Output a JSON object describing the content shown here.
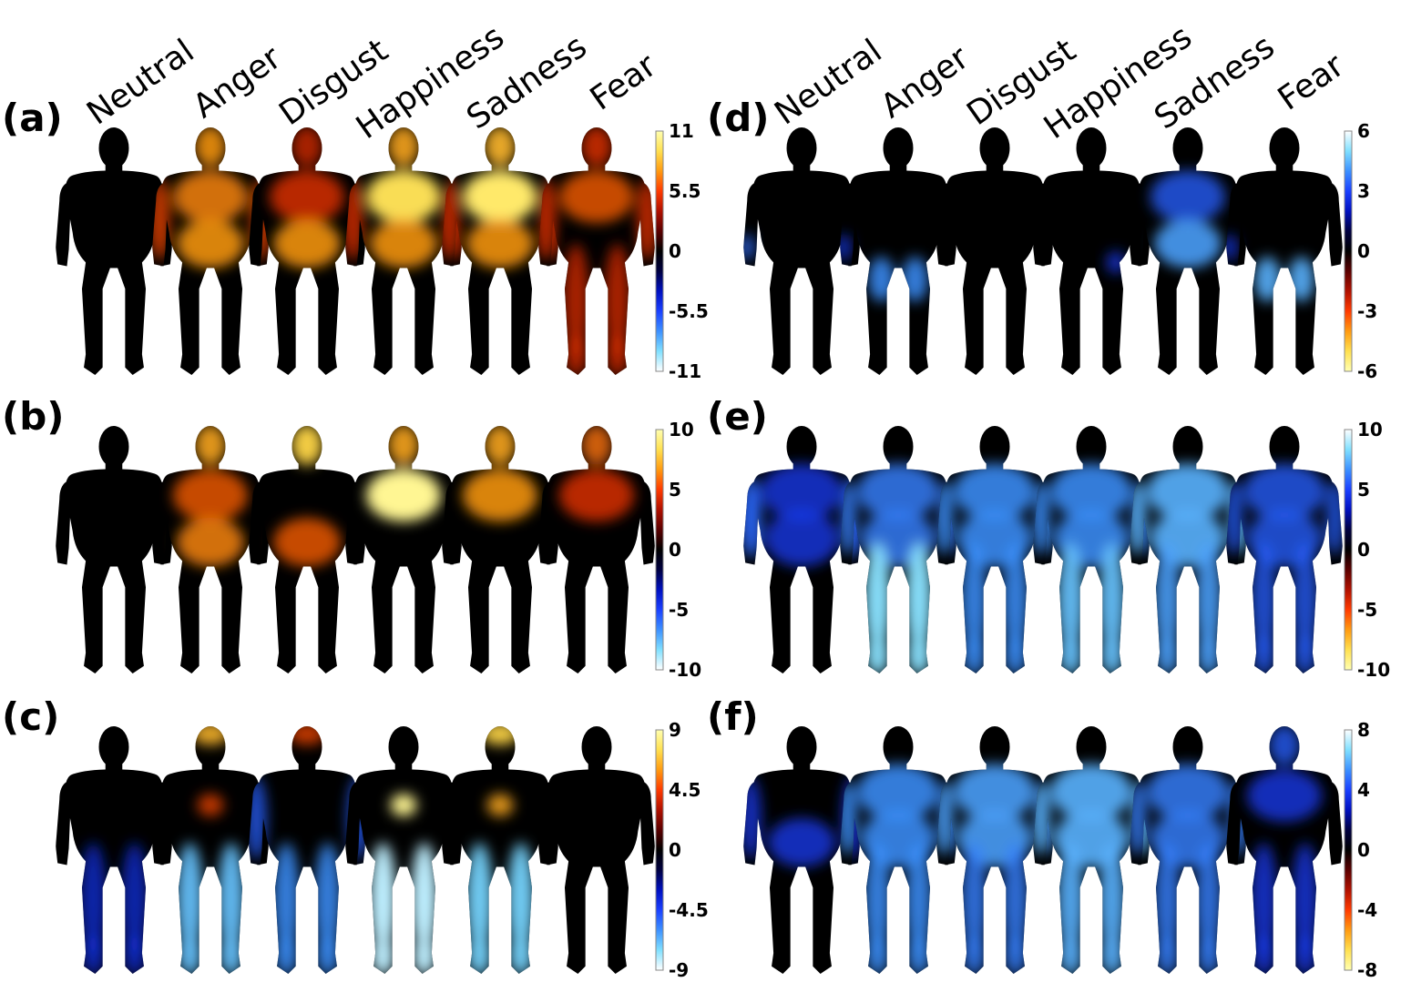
{
  "emotions": [
    "Neutral",
    "Anger",
    "Disgust",
    "Happiness",
    "Sadness",
    "Fear"
  ],
  "colors": {
    "positive": [
      "#000000",
      "#5a0000",
      "#b01000",
      "#ff3a00",
      "#ff9a10",
      "#ffe050",
      "#ffffb0"
    ],
    "negative": [
      "#000000",
      "#000040",
      "#0010c0",
      "#1a40ff",
      "#3c90ff",
      "#80e0ff",
      "#ffffff"
    ]
  },
  "panels": [
    {
      "id": "a",
      "label": "(a)",
      "ticks": [
        "11",
        "5.5",
        "0",
        "-5.5",
        "-11"
      ],
      "colorbar": "pos-top",
      "figures": [
        {
          "emotion": "Neutral",
          "blobs": []
        },
        {
          "emotion": "Anger",
          "blobs": [
            {
              "region": "head",
              "intensity": 0.6,
              "sign": "pos"
            },
            {
              "region": "chest",
              "intensity": 0.55,
              "sign": "pos"
            },
            {
              "region": "belly",
              "intensity": 0.6,
              "sign": "pos"
            },
            {
              "region": "arms",
              "intensity": 0.4,
              "sign": "pos"
            }
          ]
        },
        {
          "emotion": "Disgust",
          "blobs": [
            {
              "region": "head",
              "intensity": 0.3,
              "sign": "pos"
            },
            {
              "region": "chest",
              "intensity": 0.35,
              "sign": "pos"
            },
            {
              "region": "belly",
              "intensity": 0.6,
              "sign": "pos"
            }
          ]
        },
        {
          "emotion": "Happiness",
          "blobs": [
            {
              "region": "head",
              "intensity": 0.65,
              "sign": "pos"
            },
            {
              "region": "chest",
              "intensity": 0.85,
              "sign": "pos"
            },
            {
              "region": "belly",
              "intensity": 0.6,
              "sign": "pos"
            },
            {
              "region": "arms",
              "intensity": 0.35,
              "sign": "pos"
            }
          ]
        },
        {
          "emotion": "Sadness",
          "blobs": [
            {
              "region": "head",
              "intensity": 0.7,
              "sign": "pos"
            },
            {
              "region": "chest",
              "intensity": 0.9,
              "sign": "pos"
            },
            {
              "region": "belly",
              "intensity": 0.6,
              "sign": "pos"
            },
            {
              "region": "arms",
              "intensity": 0.35,
              "sign": "pos"
            }
          ]
        },
        {
          "emotion": "Fear",
          "blobs": [
            {
              "region": "head",
              "intensity": 0.35,
              "sign": "pos"
            },
            {
              "region": "chest",
              "intensity": 0.45,
              "sign": "pos"
            },
            {
              "region": "arms",
              "intensity": 0.35,
              "sign": "pos"
            },
            {
              "region": "legs",
              "intensity": 0.3,
              "sign": "pos"
            }
          ]
        }
      ]
    },
    {
      "id": "b",
      "label": "(b)",
      "ticks": [
        "10",
        "5",
        "0",
        "-5",
        "-10"
      ],
      "colorbar": "pos-top",
      "figures": [
        {
          "emotion": "Neutral",
          "blobs": []
        },
        {
          "emotion": "Anger",
          "blobs": [
            {
              "region": "head",
              "intensity": 0.65,
              "sign": "pos"
            },
            {
              "region": "chest",
              "intensity": 0.45,
              "sign": "pos"
            },
            {
              "region": "belly",
              "intensity": 0.55,
              "sign": "pos"
            }
          ]
        },
        {
          "emotion": "Disgust",
          "blobs": [
            {
              "region": "head",
              "intensity": 0.8,
              "sign": "pos"
            },
            {
              "region": "belly",
              "intensity": 0.45,
              "sign": "pos"
            }
          ]
        },
        {
          "emotion": "Happiness",
          "blobs": [
            {
              "region": "head",
              "intensity": 0.65,
              "sign": "pos"
            },
            {
              "region": "chest",
              "intensity": 1.0,
              "sign": "pos"
            }
          ]
        },
        {
          "emotion": "Sadness",
          "blobs": [
            {
              "region": "head",
              "intensity": 0.65,
              "sign": "pos"
            },
            {
              "region": "chest",
              "intensity": 0.6,
              "sign": "pos"
            }
          ]
        },
        {
          "emotion": "Fear",
          "blobs": [
            {
              "region": "head",
              "intensity": 0.5,
              "sign": "pos"
            },
            {
              "region": "chest",
              "intensity": 0.35,
              "sign": "pos"
            }
          ]
        }
      ]
    },
    {
      "id": "c",
      "label": "(c)",
      "ticks": [
        "9",
        "4.5",
        "0",
        "-4.5",
        "-9"
      ],
      "colorbar": "pos-top",
      "figures": [
        {
          "emotion": "Neutral",
          "blobs": [
            {
              "region": "legs",
              "intensity": 0.3,
              "sign": "neg"
            }
          ]
        },
        {
          "emotion": "Anger",
          "blobs": [
            {
              "region": "crown",
              "intensity": 0.7,
              "sign": "pos"
            },
            {
              "region": "spot",
              "intensity": 0.4,
              "sign": "pos"
            },
            {
              "region": "legs",
              "intensity": 0.75,
              "sign": "neg"
            }
          ]
        },
        {
          "emotion": "Disgust",
          "blobs": [
            {
              "region": "crown",
              "intensity": 0.4,
              "sign": "pos"
            },
            {
              "region": "arms",
              "intensity": 0.45,
              "sign": "neg"
            },
            {
              "region": "legs",
              "intensity": 0.6,
              "sign": "neg"
            }
          ]
        },
        {
          "emotion": "Happiness",
          "blobs": [
            {
              "region": "spot",
              "intensity": 1.0,
              "sign": "pos"
            },
            {
              "region": "legs",
              "intensity": 0.95,
              "sign": "neg"
            }
          ]
        },
        {
          "emotion": "Sadness",
          "blobs": [
            {
              "region": "crown",
              "intensity": 0.8,
              "sign": "pos"
            },
            {
              "region": "spot",
              "intensity": 0.65,
              "sign": "pos"
            },
            {
              "region": "legs",
              "intensity": 0.8,
              "sign": "neg"
            }
          ]
        },
        {
          "emotion": "Fear",
          "blobs": []
        }
      ]
    },
    {
      "id": "d",
      "label": "(d)",
      "ticks": [
        "6",
        "3",
        "0",
        "-3",
        "-6"
      ],
      "colorbar": "neg-top",
      "figures": [
        {
          "emotion": "Neutral",
          "blobs": [
            {
              "region": "hand-left",
              "intensity": 0.5,
              "sign": "neg"
            }
          ]
        },
        {
          "emotion": "Anger",
          "blobs": [
            {
              "region": "hand-left",
              "intensity": 0.35,
              "sign": "neg"
            },
            {
              "region": "thigh",
              "intensity": 0.6,
              "sign": "neg"
            }
          ]
        },
        {
          "emotion": "Disgust",
          "blobs": []
        },
        {
          "emotion": "Happiness",
          "blobs": [
            {
              "region": "hip",
              "intensity": 0.35,
              "sign": "neg"
            }
          ]
        },
        {
          "emotion": "Sadness",
          "blobs": [
            {
              "region": "chest",
              "intensity": 0.45,
              "sign": "neg"
            },
            {
              "region": "belly",
              "intensity": 0.65,
              "sign": "neg"
            }
          ]
        },
        {
          "emotion": "Fear",
          "blobs": [
            {
              "region": "hand-left",
              "intensity": 0.35,
              "sign": "neg"
            },
            {
              "region": "thigh",
              "intensity": 0.7,
              "sign": "neg"
            }
          ]
        }
      ]
    },
    {
      "id": "e",
      "label": "(e)",
      "ticks": [
        "10",
        "5",
        "0",
        "-5",
        "-10"
      ],
      "colorbar": "neg-top",
      "figures": [
        {
          "emotion": "Neutral",
          "blobs": [
            {
              "region": "body",
              "intensity": 0.35,
              "sign": "neg"
            },
            {
              "region": "arms",
              "intensity": 0.5,
              "sign": "neg"
            }
          ]
        },
        {
          "emotion": "Anger",
          "blobs": [
            {
              "region": "body",
              "intensity": 0.55,
              "sign": "neg"
            },
            {
              "region": "legs",
              "intensity": 0.85,
              "sign": "neg"
            }
          ]
        },
        {
          "emotion": "Disgust",
          "blobs": [
            {
              "region": "body",
              "intensity": 0.6,
              "sign": "neg"
            },
            {
              "region": "legs",
              "intensity": 0.6,
              "sign": "neg"
            }
          ]
        },
        {
          "emotion": "Happiness",
          "blobs": [
            {
              "region": "body",
              "intensity": 0.6,
              "sign": "neg"
            },
            {
              "region": "legs",
              "intensity": 0.75,
              "sign": "neg"
            }
          ]
        },
        {
          "emotion": "Sadness",
          "blobs": [
            {
              "region": "body",
              "intensity": 0.7,
              "sign": "neg"
            },
            {
              "region": "legs",
              "intensity": 0.65,
              "sign": "neg"
            }
          ]
        },
        {
          "emotion": "Fear",
          "blobs": [
            {
              "region": "body",
              "intensity": 0.45,
              "sign": "neg"
            },
            {
              "region": "legs",
              "intensity": 0.45,
              "sign": "neg"
            }
          ]
        }
      ]
    },
    {
      "id": "f",
      "label": "(f)",
      "ticks": [
        "8",
        "4",
        "0",
        "-4",
        "-8"
      ],
      "colorbar": "neg-top",
      "figures": [
        {
          "emotion": "Neutral",
          "blobs": [
            {
              "region": "belly",
              "intensity": 0.35,
              "sign": "neg"
            },
            {
              "region": "arms",
              "intensity": 0.35,
              "sign": "neg"
            }
          ]
        },
        {
          "emotion": "Anger",
          "blobs": [
            {
              "region": "body",
              "intensity": 0.6,
              "sign": "neg"
            },
            {
              "region": "legs",
              "intensity": 0.6,
              "sign": "neg"
            }
          ]
        },
        {
          "emotion": "Disgust",
          "blobs": [
            {
              "region": "body",
              "intensity": 0.65,
              "sign": "neg"
            },
            {
              "region": "legs",
              "intensity": 0.55,
              "sign": "neg"
            }
          ]
        },
        {
          "emotion": "Happiness",
          "blobs": [
            {
              "region": "body",
              "intensity": 0.7,
              "sign": "neg"
            },
            {
              "region": "legs",
              "intensity": 0.7,
              "sign": "neg"
            }
          ]
        },
        {
          "emotion": "Sadness",
          "blobs": [
            {
              "region": "body",
              "intensity": 0.55,
              "sign": "neg"
            },
            {
              "region": "legs",
              "intensity": 0.55,
              "sign": "neg"
            }
          ]
        },
        {
          "emotion": "Fear",
          "blobs": [
            {
              "region": "head",
              "intensity": 0.45,
              "sign": "neg"
            },
            {
              "region": "chest",
              "intensity": 0.35,
              "sign": "neg"
            },
            {
              "region": "legs",
              "intensity": 0.35,
              "sign": "neg"
            }
          ]
        }
      ]
    }
  ]
}
